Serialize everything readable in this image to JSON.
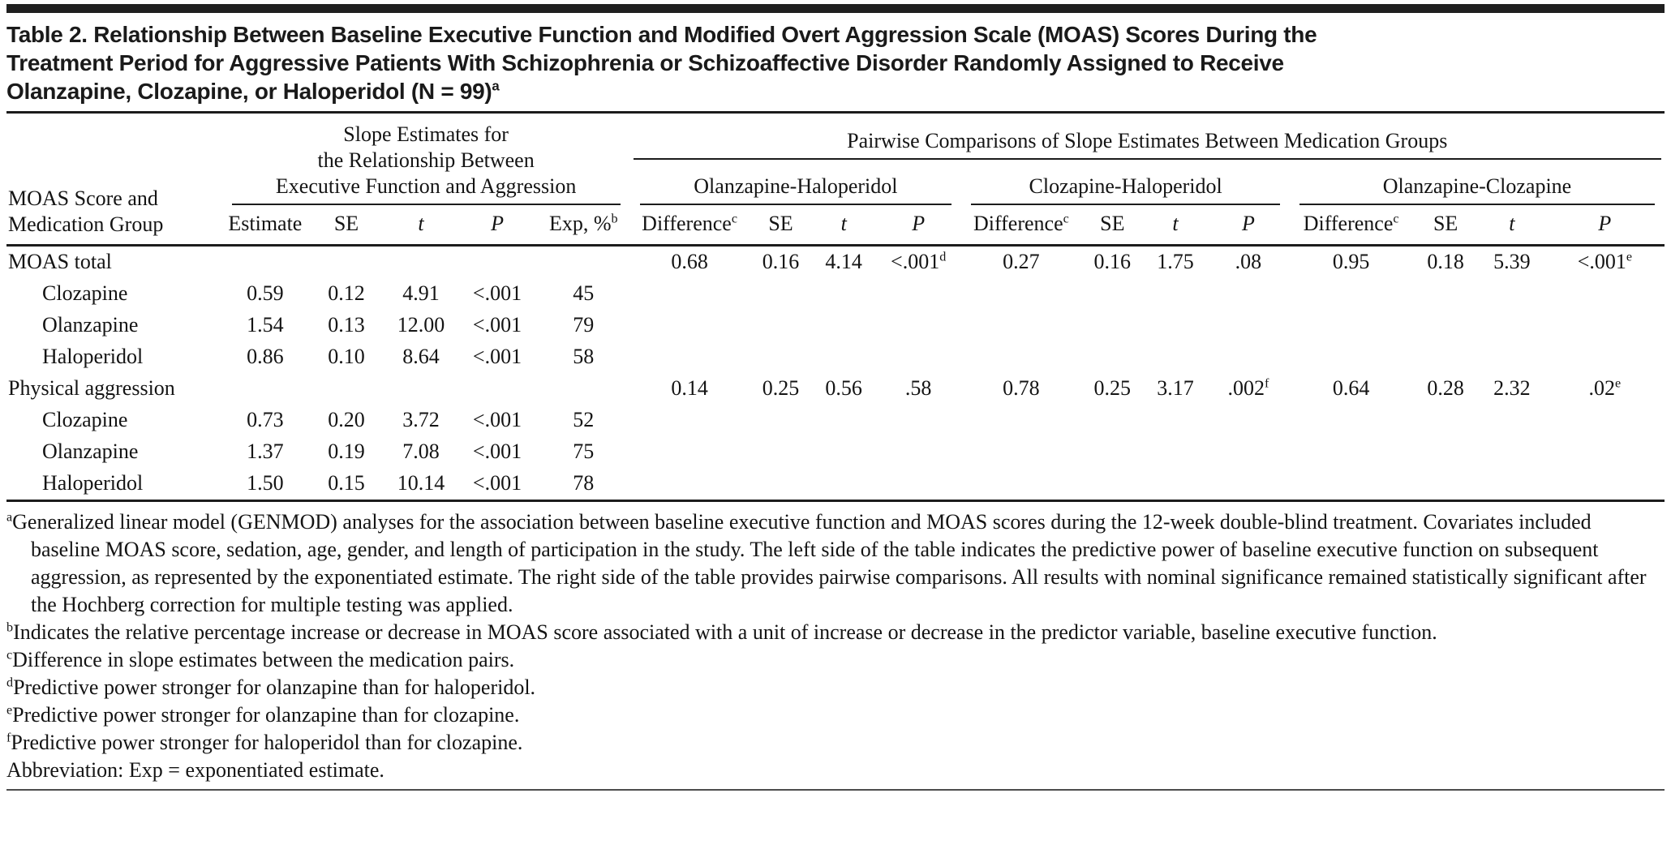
{
  "title": {
    "lines": [
      "Table 2. Relationship Between Baseline Executive Function and Modified Overt Aggression Scale (MOAS) Scores During the",
      "Treatment Period for Aggressive Patients With Schizophrenia or Schizoaffective Disorder Randomly Assigned to Receive",
      "Olanzapine, Clozapine, or Haloperidol (N = 99)"
    ],
    "sup": "a"
  },
  "header": {
    "stub_lines": [
      "MOAS Score and",
      "Medication Group"
    ],
    "left_group_lines": [
      "Slope Estimates for",
      "the Relationship Between",
      "Executive Function and Aggression"
    ],
    "right_group": "Pairwise Comparisons of Slope Estimates Between Medication Groups",
    "pair_groups": [
      "Olanzapine-Haloperidol",
      "Clozapine-Haloperidol",
      "Olanzapine-Clozapine"
    ],
    "left_cols": [
      "Estimate",
      "SE",
      "t",
      "P",
      "Exp, %"
    ],
    "exp_sup": "b",
    "pair_cols": [
      "Difference",
      "SE",
      "t",
      "P"
    ],
    "diff_sup": "c"
  },
  "rows": [
    {
      "label": "MOAS total",
      "indent": false,
      "cells": [
        "",
        "",
        "",
        "",
        "",
        "0.68",
        "0.16",
        "4.14",
        {
          "v": "<.001",
          "s": "d"
        },
        "0.27",
        "0.16",
        "1.75",
        ".08",
        "0.95",
        "0.18",
        "5.39",
        {
          "v": "<.001",
          "s": "e"
        }
      ]
    },
    {
      "label": "Clozapine",
      "indent": true,
      "cells": [
        "0.59",
        "0.12",
        "4.91",
        "<.001",
        "45",
        "",
        "",
        "",
        "",
        "",
        "",
        "",
        "",
        "",
        "",
        "",
        ""
      ]
    },
    {
      "label": "Olanzapine",
      "indent": true,
      "cells": [
        "1.54",
        "0.13",
        "12.00",
        "<.001",
        "79",
        "",
        "",
        "",
        "",
        "",
        "",
        "",
        "",
        "",
        "",
        "",
        ""
      ]
    },
    {
      "label": "Haloperidol",
      "indent": true,
      "cells": [
        "0.86",
        "0.10",
        "8.64",
        "<.001",
        "58",
        "",
        "",
        "",
        "",
        "",
        "",
        "",
        "",
        "",
        "",
        "",
        ""
      ]
    },
    {
      "label": "Physical aggression",
      "indent": false,
      "cells": [
        "",
        "",
        "",
        "",
        "",
        "0.14",
        "0.25",
        "0.56",
        ".58",
        "0.78",
        "0.25",
        "3.17",
        {
          "v": ".002",
          "s": "f"
        },
        "0.64",
        "0.28",
        "2.32",
        {
          "v": ".02",
          "s": "e"
        }
      ]
    },
    {
      "label": "Clozapine",
      "indent": true,
      "cells": [
        "0.73",
        "0.20",
        "3.72",
        "<.001",
        "52",
        "",
        "",
        "",
        "",
        "",
        "",
        "",
        "",
        "",
        "",
        "",
        ""
      ]
    },
    {
      "label": "Olanzapine",
      "indent": true,
      "cells": [
        "1.37",
        "0.19",
        "7.08",
        "<.001",
        "75",
        "",
        "",
        "",
        "",
        "",
        "",
        "",
        "",
        "",
        "",
        "",
        ""
      ]
    },
    {
      "label": "Haloperidol",
      "indent": true,
      "cells": [
        "1.50",
        "0.15",
        "10.14",
        "<.001",
        "78",
        "",
        "",
        "",
        "",
        "",
        "",
        "",
        "",
        "",
        "",
        "",
        ""
      ]
    }
  ],
  "footnotes": [
    {
      "s": "a",
      "text": "Generalized linear model (GENMOD) analyses for the association between baseline executive function and MOAS scores during the 12-week double-blind treatment. Covariates included baseline MOAS score, sedation, age, gender, and length of participation in the study. The left side of the table indicates the predictive power of baseline executive function on subsequent aggression, as represented by the exponentiated estimate. The right side of the table provides pairwise comparisons. All results with nominal significance remained statistically significant after the Hochberg correction for multiple testing was applied."
    },
    {
      "s": "b",
      "text": "Indicates the relative percentage increase or decrease in MOAS score associated with a unit of increase or decrease in the predictor variable, baseline executive function."
    },
    {
      "s": "c",
      "text": "Difference in slope estimates between the medication pairs."
    },
    {
      "s": "d",
      "text": "Predictive power stronger for olanzapine than for haloperidol."
    },
    {
      "s": "e",
      "text": "Predictive power stronger for olanzapine than for clozapine."
    },
    {
      "s": "f",
      "text": "Predictive power stronger for haloperidol than for clozapine."
    },
    {
      "s": "",
      "text": "Abbreviation: Exp = exponentiated estimate."
    }
  ],
  "colors": {
    "text": "#141414",
    "rule": "#1c1c1c",
    "bottom_rule": "#4d4d4d",
    "top_bar": "#1f1f1f"
  }
}
